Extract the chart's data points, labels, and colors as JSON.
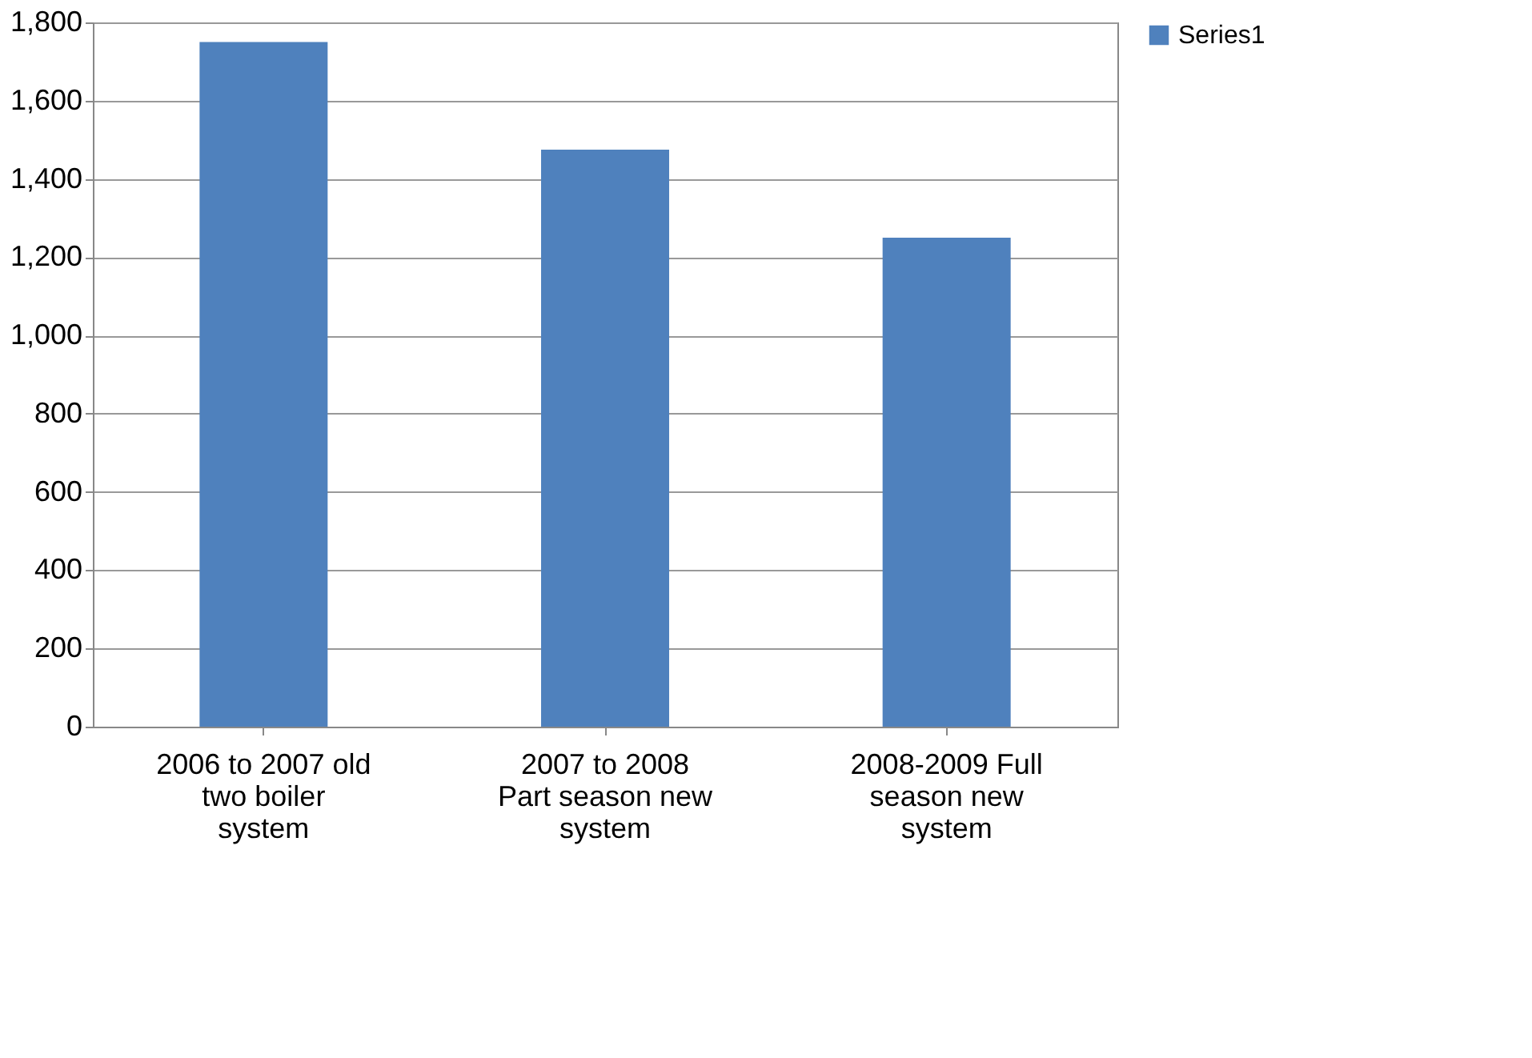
{
  "chart_data": {
    "type": "bar",
    "categories": [
      "2006 to 2007 old two boiler system",
      "2007 to 2008 Part season new system",
      "2008-2009 Full season new system"
    ],
    "series": [
      {
        "name": "Series1",
        "color": "#4f81bd",
        "values": [
          1750,
          1475,
          1250
        ]
      }
    ],
    "ylim": [
      0,
      1800
    ],
    "yticks": [
      0,
      200,
      400,
      600,
      800,
      {
        "value": 1000,
        "label": "1,000"
      },
      {
        "value": 1200,
        "label": "1,200"
      },
      {
        "value": 1400,
        "label": "1,400"
      },
      {
        "value": 1600,
        "label": "1,600"
      },
      {
        "value": 1800,
        "label": "1,800"
      }
    ],
    "grid": "y",
    "legend": "right"
  }
}
